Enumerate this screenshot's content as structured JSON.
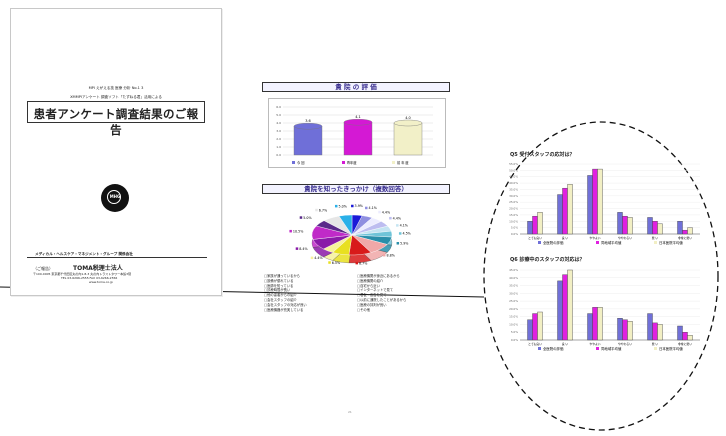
{
  "cover": {
    "top_line": "MPI えがえる技 医療 分析 No.1 3",
    "subtitle": "XMMPIアンケート 調査ソフト「たずねる君」活用による",
    "title": "患者アンケート調査結果のご報告",
    "logo_text": "MHG",
    "group_name": "メディカル・ヘルスケア・マネジメント・グループ  関係会社",
    "org_label": "（ご報告）",
    "org_name": "TOMA税理士法人",
    "address": "〒100-0005 東京都千代田区丸の内1-8-3 丸の内トラストタワー本館3階",
    "tel": "TEL 03-6266-2555    FAX 03-6266-2556",
    "url": "www.toma.co.jp"
  },
  "middle": {
    "section1_title": "貴 院 の 評 価",
    "section2_title": "貴院を知ったきっかけ（複数回答）",
    "page_number": "21",
    "legend_bar": [
      "今 回",
      "昨年度",
      "前 年 度"
    ],
    "list_rows": [
      [
        "□家族が通っているから",
        "□医療機関が身近にあるから"
      ],
      [
        "□設備が優れている",
        "□医療機関の紹介"
      ],
      [
        "□医師を知っている",
        "□自宅から近い"
      ],
      [
        "□診療時間が長い",
        "□インターネットで見て"
      ],
      [
        "□他の患者からの紹介",
        "□看板・広告を見て"
      ],
      [
        "□会社スタッフの紹介",
        "□以前に通院したことがあるから"
      ],
      [
        "□会社スタッフの対応が良い",
        "□医療の評判が良い"
      ],
      [
        "□医療機器が充実している",
        "□その他"
      ]
    ]
  },
  "right": {
    "q5_title": "Q5 受付スタッフの応対は？",
    "q6_title": "Q6 診療中のスタッフの対応は？",
    "legend": [
      "全医院の評価",
      "同地域平均値",
      "日本医院平均値"
    ]
  },
  "chart_data": [
    {
      "type": "bar",
      "title": "貴 院 の 評 価",
      "categories": [
        "今 回",
        "昨年度",
        "前 年 度"
      ],
      "values": [
        3.6,
        4.1,
        4.0
      ],
      "ylim": [
        0,
        6
      ],
      "colors": [
        "#6f6fd8",
        "#d419d4",
        "#f2f0c8"
      ]
    },
    {
      "type": "pie",
      "title": "貴院を知ったきっかけ（複数回答）",
      "values": [
        3.9,
        4.1,
        4.4,
        4.4,
        4.1,
        4.5,
        5.9,
        8.8,
        8.7,
        6.5,
        4.4,
        8.4,
        10.5,
        5.0,
        6.7,
        5.0
      ],
      "labels": [
        "3.9%",
        "4.1%",
        "4.4%",
        "4.4%",
        "4.1%",
        "4.5%",
        "5.9%",
        "8.8%",
        "8.7%",
        "6.5%",
        "4.4%",
        "8.4%",
        "10.5%",
        "5.0%",
        "6.7%",
        "5.0%"
      ],
      "colors": [
        "#1a1ad8",
        "#8f8fe0",
        "#ececff",
        "#bdbdf0",
        "#c4e4f2",
        "#6fc4d8",
        "#2a8faa",
        "#f0a8a8",
        "#d81a1a",
        "#e8e020",
        "#f6f29c",
        "#8a1aa8",
        "#c02ac8",
        "#5a2a8a",
        "#e6e6e6",
        "#2ab0e8"
      ]
    },
    {
      "type": "bar",
      "title": "Q5 受付スタッフの応対は？",
      "categories": [
        "とても良い",
        "良 い",
        "ややよい",
        "ややわるい",
        "悪 い",
        "非常に悪い"
      ],
      "series": [
        {
          "name": "全医院の評価",
          "values": [
            10,
            31,
            46,
            17,
            13,
            10
          ]
        },
        {
          "name": "同地域平均値",
          "values": [
            14,
            36,
            51,
            14,
            10,
            3
          ]
        },
        {
          "name": "日本医院平均値",
          "values": [
            17,
            39,
            51,
            13,
            8,
            5
          ]
        }
      ],
      "ylim": [
        0,
        55
      ],
      "colors": [
        "#7070d8",
        "#e020e0",
        "#f2efc4"
      ]
    },
    {
      "type": "bar",
      "title": "Q6 診療中のスタッフの対応は？",
      "categories": [
        "とても良い",
        "良 い",
        "ややよい",
        "ややわるい",
        "悪 い",
        "非常に悪い"
      ],
      "series": [
        {
          "name": "全医院の評価",
          "values": [
            13,
            38,
            17,
            14,
            17,
            9
          ]
        },
        {
          "name": "同地域平均値",
          "values": [
            17,
            42,
            21,
            13,
            11,
            5
          ]
        },
        {
          "name": "日本医院平均値",
          "values": [
            18,
            45,
            21,
            12,
            10,
            3
          ]
        }
      ],
      "ylim": [
        0,
        45
      ],
      "colors": [
        "#7070d8",
        "#e020e0",
        "#f2efc4"
      ]
    }
  ]
}
